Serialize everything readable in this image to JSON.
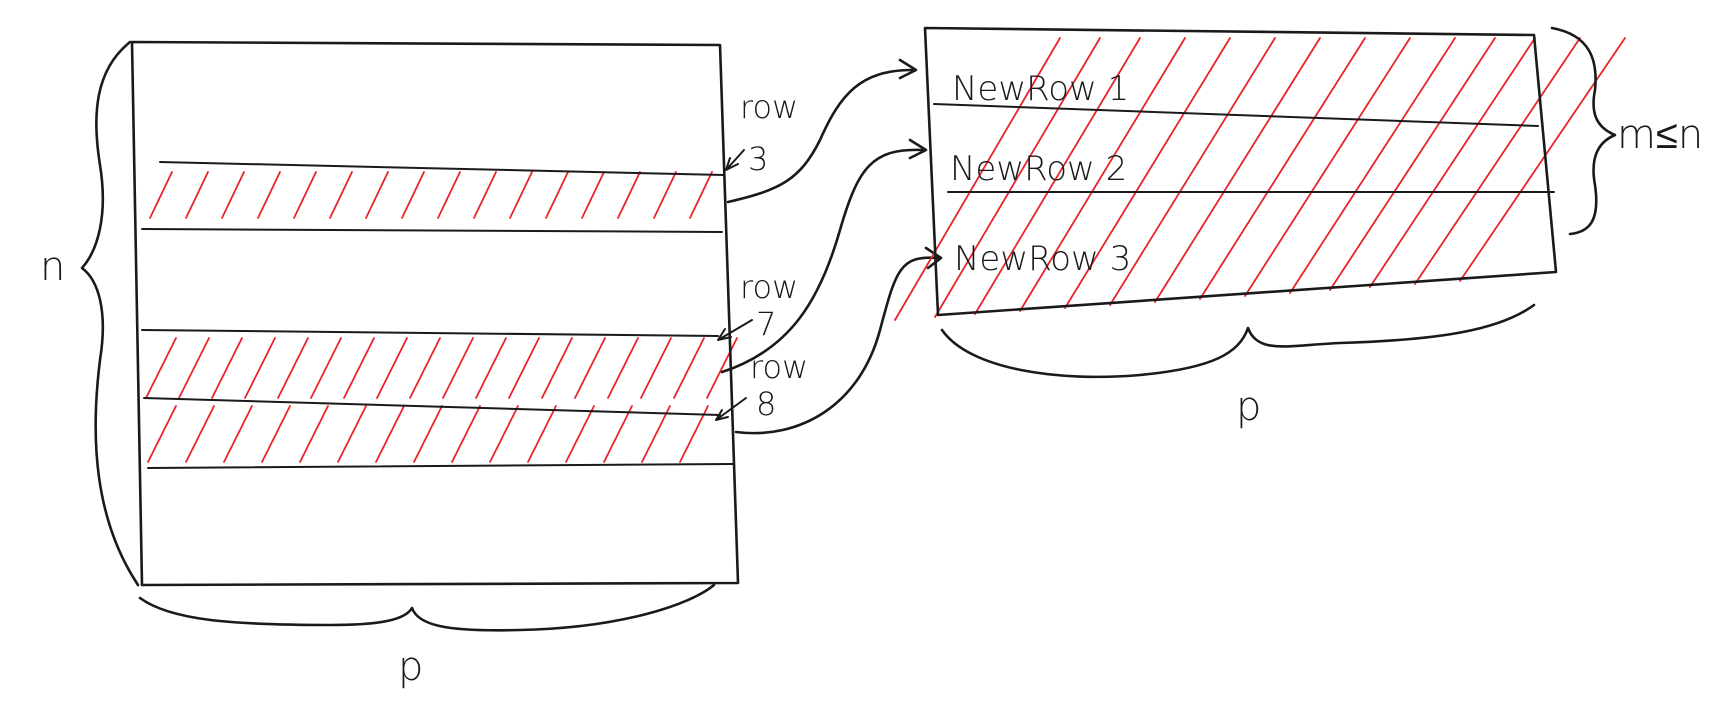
{
  "source": {
    "labels": [
      {
        "id": "row3",
        "line1": "row",
        "line2": "3"
      },
      {
        "id": "row7",
        "line1": "row",
        "line2": "7"
      },
      {
        "id": "row8",
        "line1": "row",
        "line2": "8"
      }
    ],
    "height_label": "n",
    "width_label": "p"
  },
  "result": {
    "rows": [
      "NewRow 1",
      "NewRow 2",
      "NewRow 3"
    ],
    "height_label": "m≤n",
    "width_label": "p"
  },
  "colors": {
    "ink": "#1a1a1a",
    "hatch": "#e8232b"
  }
}
